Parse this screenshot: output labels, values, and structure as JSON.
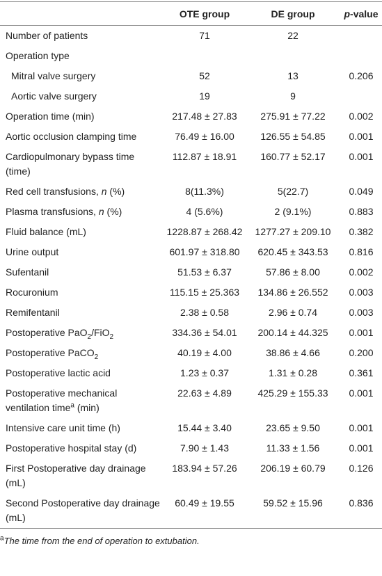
{
  "table": {
    "columns": [
      [
        {
          "text": "OTE group"
        }
      ],
      [
        {
          "text": "DE group"
        }
      ],
      [
        {
          "text": "p",
          "italic": true
        },
        {
          "text": "-value"
        }
      ]
    ],
    "rows": [
      {
        "label": [
          {
            "text": "Number of patients"
          }
        ],
        "cells": [
          "71",
          "22",
          null
        ]
      },
      {
        "label": [
          {
            "text": "Operation type"
          }
        ],
        "cells": [
          null,
          null,
          null
        ]
      },
      {
        "label": [
          {
            "text": "Mitral valve surgery"
          }
        ],
        "indent": true,
        "cells": [
          "52",
          "13",
          "0.206"
        ]
      },
      {
        "label": [
          {
            "text": "Aortic valve surgery"
          }
        ],
        "indent": true,
        "cells": [
          "19",
          "9",
          null
        ]
      },
      {
        "label": [
          {
            "text": "Operation time (min)"
          }
        ],
        "cells": [
          "217.48 ± 27.83",
          "275.91 ± 77.22",
          "0.002"
        ]
      },
      {
        "label": [
          {
            "text": "Aortic occlusion clamping time"
          }
        ],
        "cells": [
          "76.49 ± 16.00",
          "126.55 ± 54.85",
          "0.001"
        ]
      },
      {
        "label": [
          {
            "text": "Cardiopulmonary bypass time (time)"
          }
        ],
        "cells": [
          "112.87 ± 18.91",
          "160.77 ± 52.17",
          "0.001"
        ]
      },
      {
        "label": [
          {
            "text": "Red cell transfusions, "
          },
          {
            "text": "n",
            "italic": true
          },
          {
            "text": " (%)"
          }
        ],
        "cells": [
          "8(11.3%)",
          "5(22.7)",
          "0.049"
        ]
      },
      {
        "label": [
          {
            "text": "Plasma transfusions, "
          },
          {
            "text": "n",
            "italic": true
          },
          {
            "text": " (%)"
          }
        ],
        "cells": [
          "4 (5.6%)",
          "2 (9.1%)",
          "0.883"
        ]
      },
      {
        "label": [
          {
            "text": "Fluid balance (mL)"
          }
        ],
        "cells": [
          "1228.87 ± 268.42",
          "1277.27 ± 209.10",
          "0.382"
        ]
      },
      {
        "label": [
          {
            "text": "Urine output"
          }
        ],
        "cells": [
          "601.97 ± 318.80",
          "620.45 ± 343.53",
          "0.816"
        ]
      },
      {
        "label": [
          {
            "text": "Sufentanil"
          }
        ],
        "cells": [
          "51.53 ± 6.37",
          "57.86 ± 8.00",
          "0.002"
        ]
      },
      {
        "label": [
          {
            "text": "Rocuronium"
          }
        ],
        "cells": [
          "115.15 ± 25.363",
          "134.86 ± 26.552",
          "0.003"
        ]
      },
      {
        "label": [
          {
            "text": "Remifentanil"
          }
        ],
        "cells": [
          "2.38 ± 0.58",
          "2.96 ± 0.74",
          "0.003"
        ]
      },
      {
        "label": [
          {
            "text": "Postoperative PaO"
          },
          {
            "text": "2",
            "sub": true
          },
          {
            "text": "/FiO"
          },
          {
            "text": "2",
            "sub": true
          }
        ],
        "cells": [
          "334.36 ± 54.01",
          "200.14 ± 44.325",
          "0.001"
        ]
      },
      {
        "label": [
          {
            "text": "Postoperative PaCO"
          },
          {
            "text": "2",
            "sub": true
          }
        ],
        "cells": [
          "40.19 ± 4.00",
          "38.86 ± 4.66",
          "0.200"
        ]
      },
      {
        "label": [
          {
            "text": "Postoperative lactic acid"
          }
        ],
        "cells": [
          "1.23 ± 0.37",
          "1.31 ± 0.28",
          "0.361"
        ]
      },
      {
        "label": [
          {
            "text": "Postoperative mechanical ventilation time"
          },
          {
            "text": "a",
            "sup": true
          },
          {
            "text": " (min)"
          }
        ],
        "cells": [
          "22.63 ± 4.89",
          "425.29 ± 155.33",
          "0.001"
        ]
      },
      {
        "label": [
          {
            "text": "Intensive care unit time (h)"
          }
        ],
        "cells": [
          "15.44 ± 3.40",
          "23.65 ± 9.50",
          "0.001"
        ]
      },
      {
        "label": [
          {
            "text": "Postoperative hospital stay (d)"
          }
        ],
        "cells": [
          "7.90 ± 1.43",
          "11.33 ± 1.56",
          "0.001"
        ]
      },
      {
        "label": [
          {
            "text": "First Postoperative day drainage (mL)"
          }
        ],
        "cells": [
          "183.94 ± 57.26",
          "206.19 ± 60.79",
          "0.126"
        ]
      },
      {
        "label": [
          {
            "text": "Second Postoperative day drainage (mL)"
          }
        ],
        "cells": [
          "60.49 ± 19.55",
          "59.52 ± 15.96",
          "0.836"
        ]
      }
    ],
    "footnote": [
      {
        "text": "a",
        "sup": true
      },
      {
        "text": "The time from the end of operation to extubation.",
        "italic": true
      }
    ]
  }
}
